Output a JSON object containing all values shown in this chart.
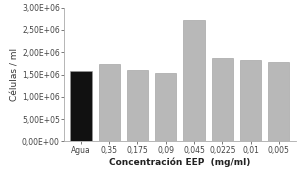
{
  "categories": [
    "Agua",
    "0,35",
    "0,175",
    "0,09",
    "0,045",
    "0,0225",
    "0,01",
    "0,005"
  ],
  "values": [
    1580000,
    1730000,
    1600000,
    1540000,
    2730000,
    1880000,
    1830000,
    1790000
  ],
  "bar_colors": [
    "#111111",
    "#b8b8b8",
    "#b8b8b8",
    "#b8b8b8",
    "#b8b8b8",
    "#b8b8b8",
    "#b8b8b8",
    "#b8b8b8"
  ],
  "xlabel": "Concentración EEP  (mg/ml)",
  "ylabel": "Células / ml",
  "ylim": [
    0,
    3000000
  ],
  "yticks": [
    0,
    500000,
    1000000,
    1500000,
    2000000,
    2500000,
    3000000
  ],
  "ytick_labels": [
    "0,00E+00",
    "5,00E+05",
    "1,00E+06",
    "1,50E+06",
    "2,00E+06",
    "2,50E+06",
    "3,00E+06"
  ],
  "bar_width": 0.75,
  "edge_color": "#999999",
  "background_color": "#ffffff",
  "xlabel_fontsize": 6.5,
  "ylabel_fontsize": 6.5,
  "tick_fontsize": 5.5,
  "xlabel_bold": true,
  "ylabel_bold": false
}
